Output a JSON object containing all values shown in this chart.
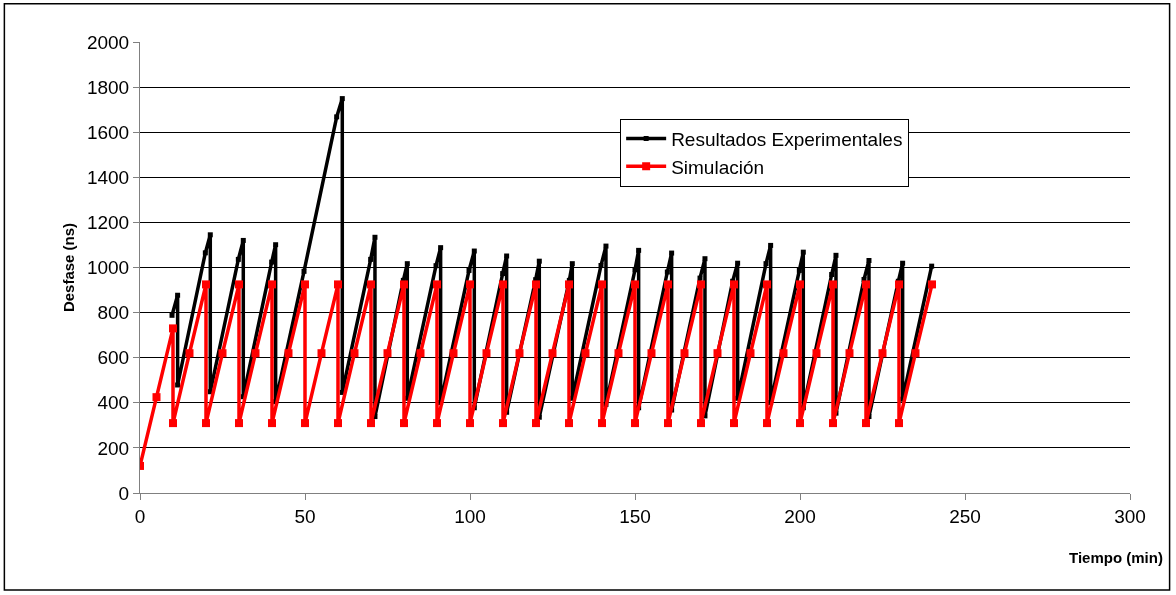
{
  "chart_data": {
    "type": "line",
    "xlabel": "Tiempo (min)",
    "ylabel": "Desfase (ns)",
    "xlim": [
      0,
      300
    ],
    "xticks": [
      0,
      50,
      100,
      150,
      200,
      250,
      300
    ],
    "ylim": [
      0,
      2000
    ],
    "yticks": [
      0,
      200,
      400,
      600,
      800,
      1000,
      1200,
      1400,
      1600,
      1800,
      2000
    ],
    "grid": "y",
    "legend": "top right",
    "marker": "square",
    "line_style": "solid",
    "series": [
      {
        "name": "Resultados Experimentales",
        "color": "#000000",
        "x": [
          9.7,
          11.4,
          11.4,
          19.8,
          21.3,
          21.3,
          29.8,
          31.3,
          31.3,
          39.9,
          41.1,
          41.1,
          49.7,
          59.6,
          61.3,
          61.3,
          69.9,
          71.2,
          71.2,
          79.8,
          81.0,
          81.0,
          89.7,
          91.1,
          91.1,
          99.7,
          101.3,
          101.3,
          109.9,
          111.1,
          111.1,
          119.9,
          121.0,
          121.0,
          130.1,
          131.0,
          131.0,
          139.7,
          141.2,
          141.2,
          150.0,
          151.1,
          151.1,
          159.8,
          161.1,
          161.1,
          169.7,
          171.2,
          171.2,
          179.6,
          181.1,
          181.1,
          189.7,
          191.1,
          191.1,
          199.8,
          201.0,
          201.0,
          209.6,
          210.9,
          210.9,
          219.4,
          220.9,
          220.9,
          229.8,
          231.1,
          231.1,
          239.9
        ],
        "values": [
          788,
          877,
          479,
          1065,
          1145,
          449,
          1036,
          1120,
          427,
          1024,
          1101,
          405,
          983,
          1668,
          1749,
          446,
          1036,
          1134,
          339,
          943,
          1017,
          420,
          1008,
          1088,
          401,
          987,
          1073,
          378,
          973,
          1051,
          358,
          946,
          1028,
          336,
          943,
          1017,
          420,
          1009,
          1095,
          393,
          990,
          1076,
          378,
          980,
          1064,
          368,
          953,
          1039,
          342,
          939,
          1019,
          420,
          1017,
          1098,
          401,
          987,
          1068,
          378,
          969,
          1054,
          354,
          947,
          1031,
          339,
          939,
          1019,
          416,
          1006
        ]
      },
      {
        "name": "Simulación",
        "color": "#ff0000",
        "x": [
          0,
          5,
          10,
          10,
          15,
          20,
          20,
          25,
          30,
          30,
          35,
          40,
          40,
          45,
          50,
          50,
          55,
          60,
          60,
          65,
          70,
          70,
          75,
          80,
          80,
          85,
          90,
          90,
          95,
          100,
          100,
          105,
          110,
          110,
          115,
          120,
          120,
          125,
          130,
          130,
          135,
          140,
          140,
          145,
          150,
          150,
          155,
          160,
          160,
          165,
          170,
          170,
          175,
          180,
          180,
          185,
          190,
          190,
          195,
          200,
          200,
          205,
          210,
          210,
          215,
          220,
          220,
          225,
          230,
          230,
          235,
          240
        ],
        "values": [
          120,
          425,
          730,
          310,
          620,
          925,
          310,
          620,
          925,
          310,
          620,
          925,
          310,
          620,
          925,
          310,
          620,
          925,
          310,
          620,
          925,
          310,
          620,
          925,
          310,
          620,
          925,
          310,
          620,
          925,
          310,
          620,
          925,
          310,
          620,
          925,
          310,
          620,
          925,
          310,
          620,
          925,
          310,
          620,
          925,
          310,
          620,
          925,
          310,
          620,
          925,
          310,
          620,
          925,
          310,
          620,
          925,
          310,
          620,
          925,
          310,
          620,
          925,
          310,
          620,
          925,
          310,
          620,
          925,
          310,
          620,
          925
        ]
      }
    ]
  }
}
